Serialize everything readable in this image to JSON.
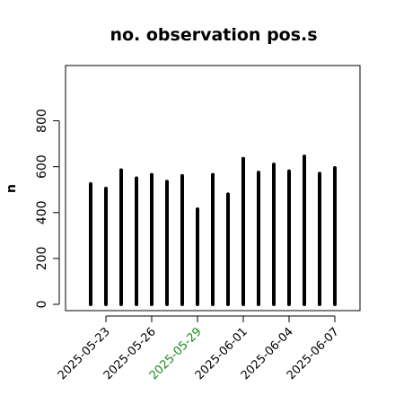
{
  "chart_data": {
    "type": "bar",
    "title": "no. observation pos.s",
    "ylabel": "n",
    "xlabel": "",
    "ylim": [
      0,
      1000
    ],
    "yticks": [
      "0",
      "200",
      "400",
      "600",
      "800"
    ],
    "x": [
      "2025-05-22",
      "2025-05-23",
      "2025-05-24",
      "2025-05-25",
      "2025-05-26",
      "2025-05-27",
      "2025-05-28",
      "2025-05-29",
      "2025-05-30",
      "2025-05-31",
      "2025-06-01",
      "2025-06-02",
      "2025-06-03",
      "2025-06-04",
      "2025-06-05",
      "2025-06-06",
      "2025-06-07"
    ],
    "values": [
      525,
      505,
      585,
      550,
      565,
      535,
      560,
      415,
      565,
      480,
      635,
      575,
      610,
      580,
      645,
      570,
      595
    ],
    "xtick_labels": [
      "2025-05-23",
      "2025-05-26",
      "2025-05-29",
      "2025-06-01",
      "2025-06-04",
      "2025-06-07"
    ],
    "highlighted_tick": "2025-05-29",
    "grid": false,
    "colors": {
      "bar": "#000000",
      "tick_text": "#000000",
      "highlight_text": "#1a8a1a"
    }
  }
}
